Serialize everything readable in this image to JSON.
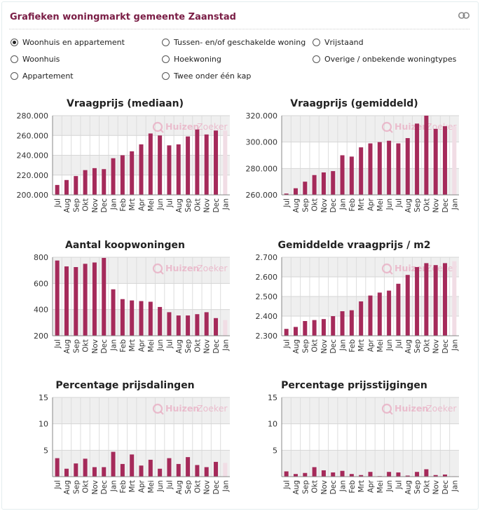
{
  "header": {
    "title": "Grafieken woningmarkt gemeente Zaanstad",
    "link_icon": "link-icon"
  },
  "filters": {
    "options": [
      {
        "label": "Woonhuis en appartement",
        "checked": true
      },
      {
        "label": "Woonhuis",
        "checked": false
      },
      {
        "label": "Appartement",
        "checked": false
      },
      {
        "label": "Tussen- en/of geschakelde woning",
        "checked": false
      },
      {
        "label": "Hoekwoning",
        "checked": false
      },
      {
        "label": "Twee onder één kap",
        "checked": false
      },
      {
        "label": "Vrijstaand",
        "checked": false
      },
      {
        "label": "Overige / onbekende woningtypes",
        "checked": false
      }
    ]
  },
  "colors": {
    "bar": "#a52a5a",
    "bar_last": "#f1dde5",
    "band": "#efefef",
    "grid": "#dddddd",
    "title_accent": "#7a1d45",
    "watermark": "#e8a9c0"
  },
  "watermark": {
    "part1": "Huizen",
    "part2": "Zoeker"
  },
  "chart_data": [
    {
      "type": "bar",
      "title": "Vraagprijs (mediaan)",
      "categories": [
        "Jul",
        "Aug",
        "Sep",
        "Okt",
        "Nov",
        "Dec",
        "Jan",
        "Feb",
        "Mrt",
        "Apr",
        "Mei",
        "Jun",
        "Jul",
        "Aug",
        "Sep",
        "Okt",
        "Nov",
        "Dec",
        "Jan"
      ],
      "values": [
        210000,
        215000,
        219000,
        225000,
        227000,
        226000,
        237000,
        240000,
        244000,
        251000,
        262000,
        260000,
        250000,
        251000,
        259000,
        266000,
        261000,
        265000,
        265000
      ],
      "ylim": [
        200000,
        280000
      ],
      "ticks": [
        200000,
        220000,
        240000,
        260000,
        280000
      ],
      "tick_labels": [
        "200.000",
        "220.000",
        "240.000",
        "260.000",
        "280.000"
      ],
      "last_partial": true
    },
    {
      "type": "bar",
      "title": "Vraagprijs (gemiddeld)",
      "categories": [
        "Jul",
        "Aug",
        "Sep",
        "Okt",
        "Nov",
        "Dec",
        "Jan",
        "Feb",
        "Mrt",
        "Apr",
        "Mei",
        "Jun",
        "Jul",
        "Aug",
        "Sep",
        "Okt",
        "Nov",
        "Dec",
        "Jan"
      ],
      "values": [
        261000,
        265000,
        270000,
        275000,
        277000,
        278000,
        290000,
        289000,
        296000,
        299000,
        300000,
        301000,
        299000,
        303000,
        314000,
        320000,
        310000,
        312000,
        312000
      ],
      "ylim": [
        260000,
        320000
      ],
      "ticks": [
        260000,
        280000,
        300000,
        320000
      ],
      "tick_labels": [
        "260.000",
        "280.000",
        "300.000",
        "320.000"
      ],
      "last_partial": true
    },
    {
      "type": "bar",
      "title": "Aantal koopwoningen",
      "categories": [
        "Jul",
        "Aug",
        "Sep",
        "Okt",
        "Nov",
        "Dec",
        "Jan",
        "Feb",
        "Mrt",
        "Apr",
        "Mei",
        "Jun",
        "Jul",
        "Aug",
        "Sep",
        "Okt",
        "Nov",
        "Dec",
        "Jan"
      ],
      "values": [
        775,
        730,
        725,
        750,
        760,
        795,
        555,
        480,
        470,
        465,
        460,
        420,
        380,
        355,
        355,
        365,
        380,
        335,
        320
      ],
      "ylim": [
        200,
        800
      ],
      "ticks": [
        200,
        400,
        600,
        800
      ],
      "tick_labels": [
        "200",
        "400",
        "600",
        "800"
      ],
      "last_partial": true
    },
    {
      "type": "bar",
      "title": "Gemiddelde vraagprijs / m2",
      "categories": [
        "Jul",
        "Aug",
        "Sep",
        "Okt",
        "Nov",
        "Dec",
        "Jan",
        "Feb",
        "Mrt",
        "Apr",
        "Mei",
        "Jun",
        "Jul",
        "Aug",
        "Sep",
        "Okt",
        "Nov",
        "Dec",
        "Jan"
      ],
      "values": [
        2335,
        2345,
        2375,
        2380,
        2385,
        2400,
        2425,
        2430,
        2475,
        2505,
        2520,
        2530,
        2565,
        2610,
        2650,
        2670,
        2660,
        2670,
        2680
      ],
      "ylim": [
        2300,
        2700
      ],
      "ticks": [
        2300,
        2400,
        2500,
        2600,
        2700
      ],
      "tick_labels": [
        "2.300",
        "2.400",
        "2.500",
        "2.600",
        "2.700"
      ],
      "last_partial": true
    },
    {
      "type": "bar",
      "title": "Percentage prijsdalingen",
      "categories": [
        "Jul",
        "Aug",
        "Sep",
        "Okt",
        "Nov",
        "Dec",
        "Jan",
        "Feb",
        "Mrt",
        "Apr",
        "Mei",
        "Jun",
        "Jul",
        "Aug",
        "Sep",
        "Okt",
        "Nov",
        "Dec",
        "Jan"
      ],
      "values": [
        3.5,
        1.5,
        2.5,
        3.4,
        1.8,
        1.8,
        4.7,
        2.4,
        4.2,
        2.1,
        3.2,
        1.5,
        3.5,
        2.4,
        3.7,
        2.2,
        1.8,
        2.8,
        2.6
      ],
      "ylim": [
        0,
        15
      ],
      "ticks": [
        5,
        10,
        15
      ],
      "tick_labels": [
        "5",
        "10",
        "15"
      ],
      "last_partial": true
    },
    {
      "type": "bar",
      "title": "Percentage prijsstijgingen",
      "categories": [
        "Jul",
        "Aug",
        "Sep",
        "Okt",
        "Nov",
        "Dec",
        "Jan",
        "Feb",
        "Mrt",
        "Apr",
        "Mei",
        "Jun",
        "Jul",
        "Aug",
        "Sep",
        "Okt",
        "Nov",
        "Dec",
        "Jan"
      ],
      "values": [
        1.0,
        0.5,
        0.7,
        1.8,
        1.2,
        0.8,
        1.1,
        0.5,
        0.3,
        0.9,
        0.1,
        0.9,
        0.8,
        0.2,
        0.9,
        1.4,
        0.3,
        0.4,
        0.1
      ],
      "ylim": [
        0,
        15
      ],
      "ticks": [
        5,
        10,
        15
      ],
      "tick_labels": [
        "5",
        "10",
        "15"
      ],
      "last_partial": true
    }
  ]
}
